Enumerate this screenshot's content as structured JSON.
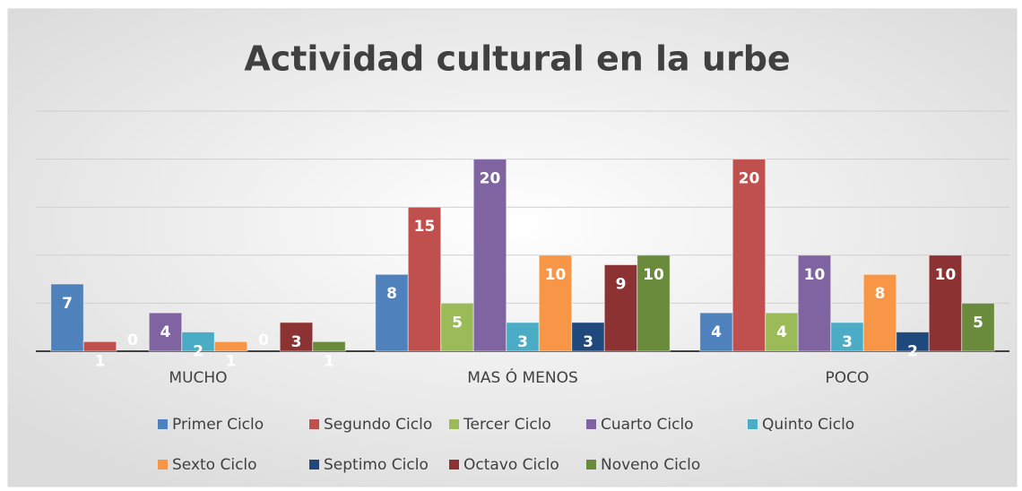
{
  "chart_data": {
    "type": "bar",
    "title": "Actividad cultural en la urbe",
    "categories": [
      "MUCHO",
      "MAS Ó MENOS",
      "POCO"
    ],
    "series": [
      {
        "name": "Primer Ciclo",
        "color": "#4f81bd",
        "values": [
          7,
          8,
          4
        ]
      },
      {
        "name": "Segundo Ciclo",
        "color": "#c0504d",
        "values": [
          1,
          15,
          20
        ]
      },
      {
        "name": "Tercer Ciclo",
        "color": "#9bbb59",
        "values": [
          0,
          5,
          4
        ]
      },
      {
        "name": "Cuarto Ciclo",
        "color": "#8064a2",
        "values": [
          4,
          20,
          10
        ]
      },
      {
        "name": "Quinto Ciclo",
        "color": "#4bacc6",
        "values": [
          2,
          3,
          3
        ]
      },
      {
        "name": "Sexto Ciclo",
        "color": "#f79646",
        "values": [
          1,
          10,
          8
        ]
      },
      {
        "name": "Septimo Ciclo",
        "color": "#1f497d",
        "values": [
          0,
          3,
          2
        ]
      },
      {
        "name": "Octavo Ciclo",
        "color": "#8c3232",
        "values": [
          3,
          9,
          10
        ]
      },
      {
        "name": "Noveno Ciclo",
        "color": "#6a8a3c",
        "values": [
          1,
          10,
          5
        ]
      }
    ],
    "ylim": [
      0,
      25
    ],
    "yticks": [
      0,
      5,
      10,
      15,
      20,
      25
    ],
    "grid": true,
    "legend": "bottom"
  }
}
